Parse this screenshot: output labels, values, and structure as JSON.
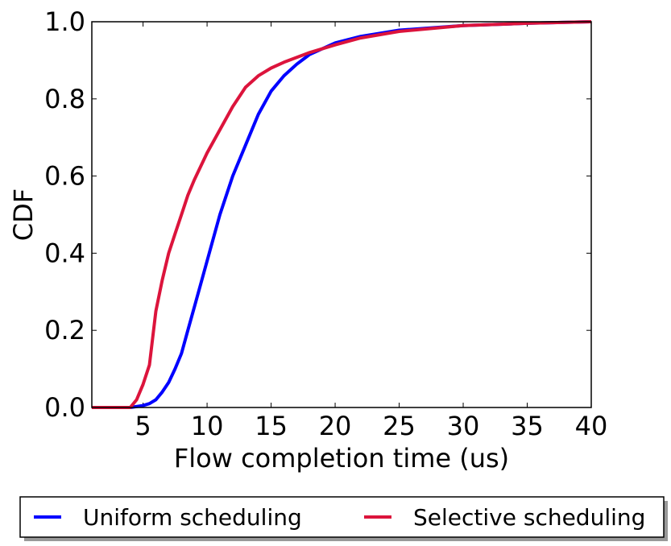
{
  "chart_data": {
    "type": "line",
    "xlabel": "Flow completion time (us)",
    "ylabel": "CDF",
    "xlim": [
      1,
      40
    ],
    "ylim": [
      0.0,
      1.0
    ],
    "x_ticks": [
      5,
      10,
      15,
      20,
      25,
      30,
      35,
      40
    ],
    "x_tick_labels": [
      "5",
      "10",
      "15",
      "20",
      "25",
      "30",
      "35",
      "40"
    ],
    "y_ticks": [
      0.0,
      0.2,
      0.4,
      0.6,
      0.8,
      1.0
    ],
    "y_tick_labels": [
      "0.0",
      "0.2",
      "0.4",
      "0.6",
      "0.8",
      "1.0"
    ],
    "grid": false,
    "legend_position": "bottom-outside",
    "series": [
      {
        "name": "Uniform scheduling",
        "color": "#0000ff",
        "x": [
          1,
          4,
          5,
          5.5,
          6,
          6.5,
          7,
          7.5,
          8,
          8.5,
          9,
          10,
          11,
          12,
          13,
          14,
          15,
          16,
          17,
          18,
          20,
          22,
          25,
          30,
          35,
          40
        ],
        "y": [
          0,
          0,
          0.005,
          0.01,
          0.02,
          0.04,
          0.065,
          0.1,
          0.14,
          0.2,
          0.26,
          0.38,
          0.5,
          0.6,
          0.68,
          0.76,
          0.82,
          0.86,
          0.89,
          0.915,
          0.945,
          0.962,
          0.978,
          0.99,
          0.996,
          1.0
        ]
      },
      {
        "name": "Selective scheduling",
        "color": "#dc143c",
        "x": [
          1,
          3.5,
          4,
          4.5,
          5,
          5.5,
          6,
          6.5,
          7,
          7.5,
          8,
          8.5,
          9,
          10,
          11,
          12,
          13,
          14,
          15,
          16,
          18,
          20,
          22,
          25,
          30,
          35,
          40
        ],
        "y": [
          0,
          0,
          0,
          0.02,
          0.06,
          0.11,
          0.25,
          0.33,
          0.4,
          0.45,
          0.5,
          0.55,
          0.59,
          0.66,
          0.72,
          0.78,
          0.83,
          0.86,
          0.88,
          0.895,
          0.92,
          0.94,
          0.958,
          0.975,
          0.99,
          0.996,
          1.0
        ]
      }
    ]
  }
}
